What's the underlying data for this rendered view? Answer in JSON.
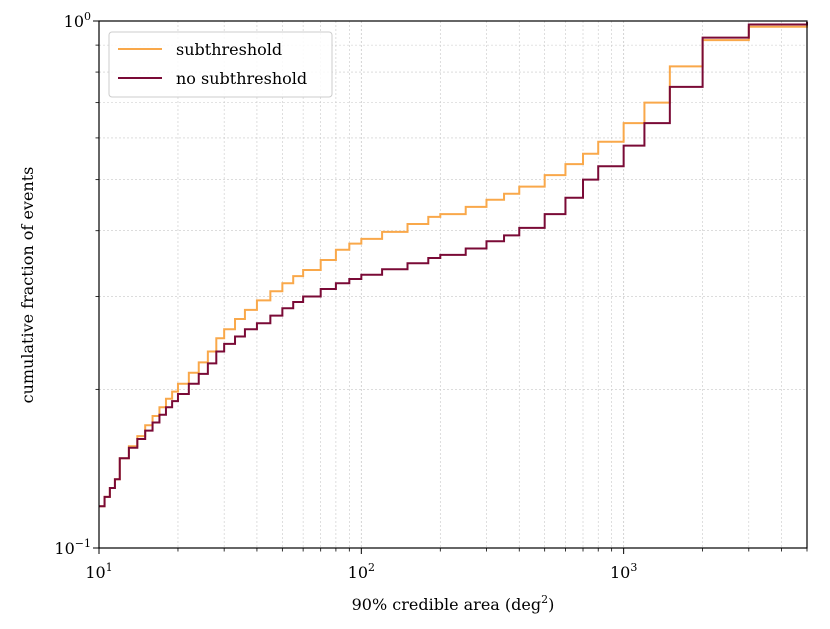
{
  "chart_data": {
    "type": "line",
    "xlabel_main": "90% credible area (deg",
    "xlabel_sup": "2",
    "xlabel_end": ")",
    "ylabel": "cumulative fraction of events",
    "x_scale": "log",
    "y_scale": "log",
    "xlim": [
      10,
      5000
    ],
    "ylim": [
      0.1,
      1.0
    ],
    "grid": true,
    "legend_position": "top-left",
    "x_ticks": [
      {
        "value": 10,
        "base": "10",
        "exp": "1"
      },
      {
        "value": 100,
        "base": "10",
        "exp": "2"
      },
      {
        "value": 1000,
        "base": "10",
        "exp": "3"
      }
    ],
    "y_ticks": [
      {
        "value": 0.1,
        "base": "10",
        "exp": "−1"
      },
      {
        "value": 1.0,
        "base": "10",
        "exp": "0"
      }
    ],
    "series": [
      {
        "name": "subthreshold",
        "color": "#f9a84a",
        "x": [
          10,
          10.5,
          11,
          11.5,
          12,
          13,
          14,
          15,
          16,
          17,
          18,
          19,
          20,
          22,
          24,
          26,
          28,
          30,
          33,
          36,
          40,
          45,
          50,
          55,
          60,
          70,
          80,
          90,
          100,
          120,
          150,
          180,
          200,
          250,
          300,
          350,
          400,
          500,
          600,
          700,
          800,
          1000,
          1200,
          1500,
          2000,
          3000,
          5000
        ],
        "y": [
          0.12,
          0.125,
          0.13,
          0.135,
          0.148,
          0.156,
          0.163,
          0.171,
          0.178,
          0.185,
          0.192,
          0.198,
          0.205,
          0.215,
          0.225,
          0.236,
          0.25,
          0.26,
          0.272,
          0.283,
          0.295,
          0.307,
          0.318,
          0.328,
          0.337,
          0.352,
          0.368,
          0.378,
          0.386,
          0.398,
          0.412,
          0.425,
          0.43,
          0.444,
          0.458,
          0.47,
          0.485,
          0.51,
          0.535,
          0.56,
          0.59,
          0.64,
          0.7,
          0.82,
          0.92,
          0.975,
          0.995
        ]
      },
      {
        "name": "no subthreshold",
        "color": "#7a0a36",
        "x": [
          10,
          10.5,
          11,
          11.5,
          12,
          13,
          14,
          15,
          16,
          17,
          18,
          19,
          20,
          22,
          24,
          26,
          28,
          30,
          33,
          36,
          40,
          45,
          50,
          55,
          60,
          70,
          80,
          90,
          100,
          120,
          150,
          180,
          200,
          250,
          300,
          350,
          400,
          500,
          600,
          700,
          800,
          1000,
          1200,
          1500,
          2000,
          3000,
          5000
        ],
        "y": [
          0.12,
          0.125,
          0.13,
          0.135,
          0.148,
          0.155,
          0.161,
          0.167,
          0.173,
          0.179,
          0.185,
          0.19,
          0.196,
          0.205,
          0.214,
          0.224,
          0.236,
          0.244,
          0.252,
          0.26,
          0.267,
          0.276,
          0.285,
          0.293,
          0.3,
          0.31,
          0.318,
          0.324,
          0.33,
          0.338,
          0.347,
          0.355,
          0.36,
          0.37,
          0.382,
          0.392,
          0.405,
          0.43,
          0.462,
          0.5,
          0.53,
          0.58,
          0.64,
          0.75,
          0.93,
          0.985,
          0.995
        ]
      }
    ]
  }
}
